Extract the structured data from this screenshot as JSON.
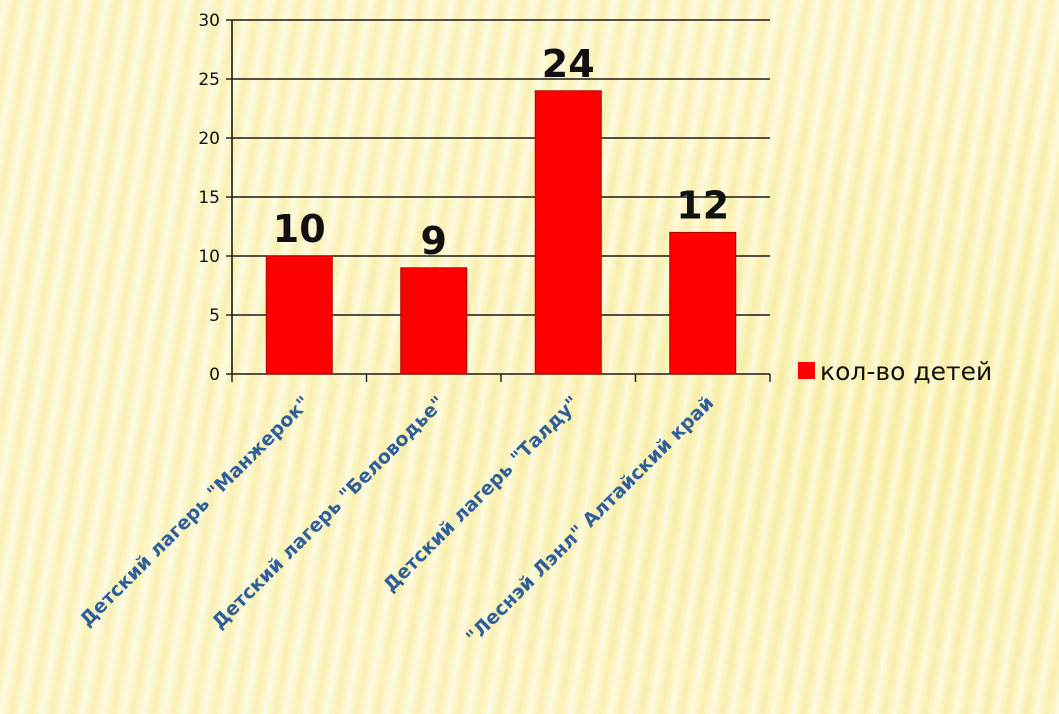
{
  "chart_data": {
    "type": "bar",
    "categories": [
      "Детский лагерь \"Манжерок\"",
      "Детский лагерь \"Беловодье\"",
      "Детский лагерь \"Талду\"",
      "\"Леснэй Лэнл\" Алтайский край"
    ],
    "series": [
      {
        "name": "кол-во детей",
        "values": [
          10,
          9,
          24,
          12
        ]
      }
    ],
    "ylim": [
      0,
      30
    ],
    "yticks": [
      0,
      5,
      10,
      15,
      20,
      25,
      30
    ],
    "grid": true,
    "legend": "right",
    "colors": {
      "bar": "#ff0000",
      "bar_edge": "#b00000",
      "axis": "#1a1a1a",
      "grid": "#1a1a1a",
      "category_label": "#2f5f9a",
      "data_label": "#111111"
    }
  }
}
